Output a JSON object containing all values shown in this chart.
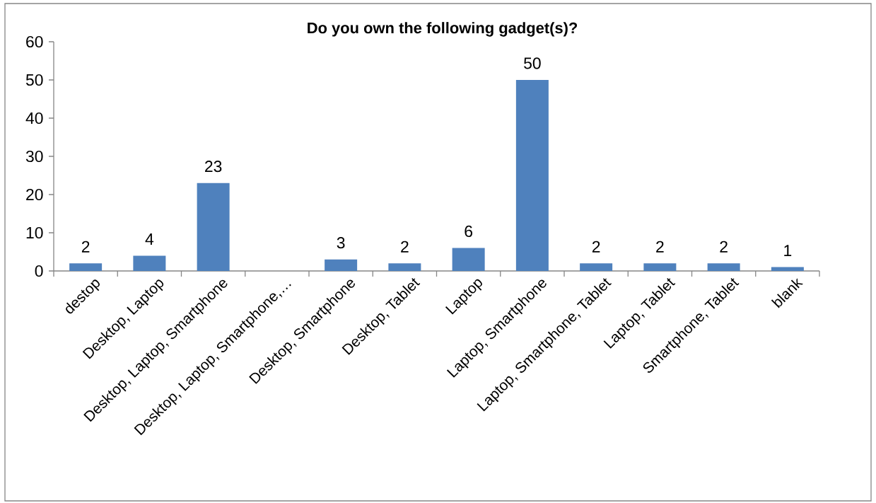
{
  "chart_data": {
    "type": "bar",
    "title": "Do you own the following gadget(s)?",
    "categories": [
      "destop",
      "Desktop, Laptop",
      "Desktop, Laptop, Smartphone",
      "Desktop, Laptop, Smartphone,…",
      "Desktop, Smartphone",
      "Desktop, Tablet",
      "Laptop",
      "Laptop, Smartphone",
      "Laptop, Smartphone, Tablet",
      "Laptop, Tablet",
      "Smartphone, Tablet",
      "blank"
    ],
    "values": [
      2,
      4,
      23,
      null,
      3,
      2,
      6,
      50,
      2,
      2,
      2,
      1
    ],
    "color": "#4f81bd",
    "ylim": [
      0,
      60
    ],
    "yticks": [
      0,
      10,
      20,
      30,
      40,
      50,
      60
    ],
    "data_labels": true
  }
}
